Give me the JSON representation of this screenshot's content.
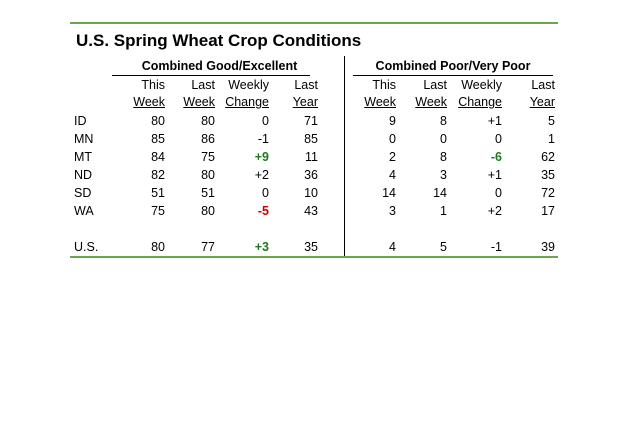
{
  "title": "U.S. Spring Wheat Crop Conditions",
  "groups": {
    "good": "Combined Good/Excellent",
    "poor": "Combined Poor/Very Poor"
  },
  "columns": [
    {
      "top": "This",
      "bottom": "Week"
    },
    {
      "top": "Last",
      "bottom": "Week"
    },
    {
      "top": "Weekly",
      "bottom": "Change"
    },
    {
      "top": "Last",
      "bottom": "Year"
    }
  ],
  "rows": [
    {
      "state": "ID",
      "good": [
        "80",
        "80",
        "0",
        "71"
      ],
      "poor": [
        "9",
        "8",
        "+1",
        "5"
      ],
      "highlight": {}
    },
    {
      "state": "MN",
      "good": [
        "85",
        "86",
        "-1",
        "85"
      ],
      "poor": [
        "0",
        "0",
        "0",
        "1"
      ],
      "highlight": {}
    },
    {
      "state": "MT",
      "good": [
        "84",
        "75",
        "+9",
        "11"
      ],
      "poor": [
        "2",
        "8",
        "-6",
        "62"
      ],
      "highlight": {
        "good": "pos",
        "poor": "pos"
      }
    },
    {
      "state": "ND",
      "good": [
        "82",
        "80",
        "+2",
        "36"
      ],
      "poor": [
        "4",
        "3",
        "+1",
        "35"
      ],
      "highlight": {}
    },
    {
      "state": "SD",
      "good": [
        "51",
        "51",
        "0",
        "10"
      ],
      "poor": [
        "14",
        "14",
        "0",
        "72"
      ],
      "highlight": {}
    },
    {
      "state": "WA",
      "good": [
        "75",
        "80",
        "-5",
        "43"
      ],
      "poor": [
        "3",
        "1",
        "+2",
        "17"
      ],
      "highlight": {
        "good": "neg"
      }
    },
    {
      "state": "U.S.",
      "good": [
        "80",
        "77",
        "+3",
        "35"
      ],
      "poor": [
        "4",
        "5",
        "-1",
        "39"
      ],
      "highlight": {
        "good": "pos"
      }
    }
  ],
  "colors": {
    "rule": "#6aa84f",
    "improvement": "#1f7a1f",
    "decline": "#cc0000"
  }
}
